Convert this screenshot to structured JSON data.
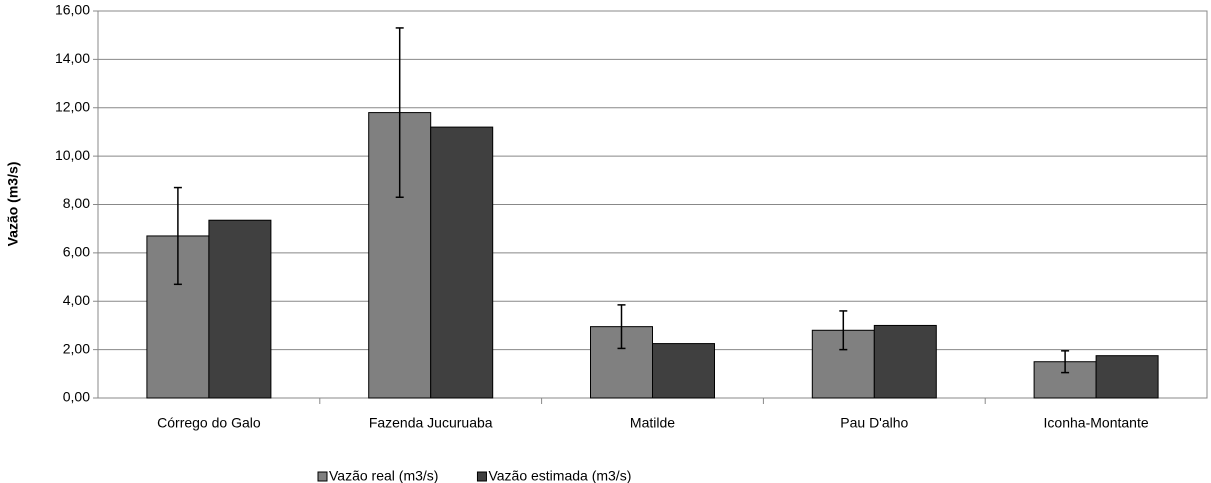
{
  "chart_data": {
    "type": "bar",
    "y_label": "Vazão (m3/s)",
    "categories": [
      "Córrego do Galo",
      "Fazenda Jucuruaba",
      "Matilde",
      "Pau D'alho",
      "Iconha-Montante"
    ],
    "series": [
      {
        "name": "Vazão real (m3/s)",
        "color": "#808080",
        "values": [
          6.7,
          11.8,
          2.95,
          2.8,
          1.5
        ],
        "errors": [
          2.0,
          3.5,
          0.9,
          0.8,
          0.45
        ]
      },
      {
        "name": "Vazão estimada (m3/s)",
        "color": "#404040",
        "values": [
          7.35,
          11.2,
          2.25,
          3.0,
          1.75
        ]
      }
    ],
    "ylim": [
      0,
      16
    ],
    "yticks": [
      {
        "value": 0,
        "label": "0,00"
      },
      {
        "value": 2,
        "label": "2,00"
      },
      {
        "value": 4,
        "label": "4,00"
      },
      {
        "value": 6,
        "label": "6,00"
      },
      {
        "value": 8,
        "label": "8,00"
      },
      {
        "value": 10,
        "label": "10,00"
      },
      {
        "value": 12,
        "label": "12,00"
      },
      {
        "value": 14,
        "label": "14,00"
      },
      {
        "value": 16,
        "label": "16,00"
      }
    ],
    "grid": true,
    "legend": "bottom"
  }
}
